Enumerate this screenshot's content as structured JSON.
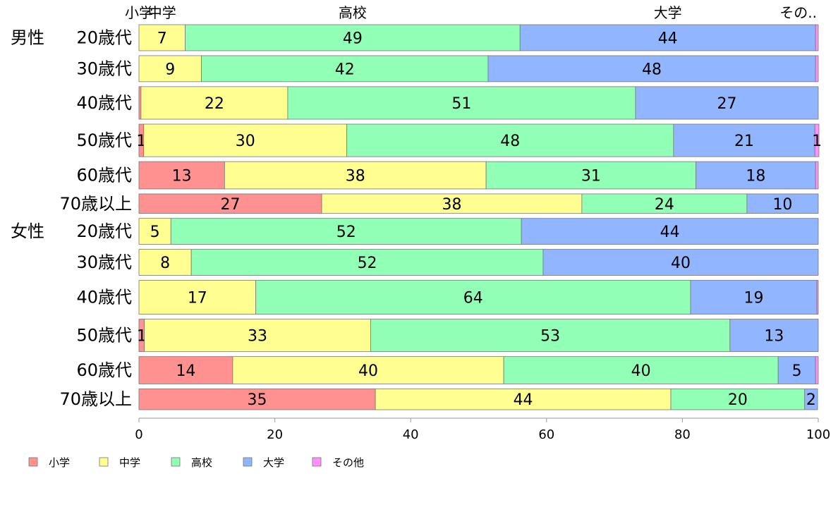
{
  "chart_data": {
    "type": "bar",
    "orientation": "horizontal",
    "stacked": true,
    "top_labels": [
      "小学",
      "中学",
      "高校",
      "大学",
      "その.."
    ],
    "groups": [
      "男性",
      "女性"
    ],
    "categories": [
      {
        "group": "男性",
        "label": "20歳代"
      },
      {
        "group": "",
        "label": "30歳代"
      },
      {
        "group": "",
        "label": "40歳代"
      },
      {
        "group": "",
        "label": "50歳代"
      },
      {
        "group": "",
        "label": "60歳代"
      },
      {
        "group": "",
        "label": "70歳以上"
      },
      {
        "group": "女性",
        "label": "20歳代"
      },
      {
        "group": "",
        "label": "30歳代"
      },
      {
        "group": "",
        "label": "40歳代"
      },
      {
        "group": "",
        "label": "50歳代"
      },
      {
        "group": "",
        "label": "60歳代"
      },
      {
        "group": "",
        "label": "70歳以上"
      }
    ],
    "series": [
      {
        "name": "小学",
        "color": "#ff9191",
        "values": [
          0,
          0,
          0.3,
          0.7,
          12.6,
          26.9,
          0,
          0,
          0,
          0.8,
          13.8,
          34.8
        ]
      },
      {
        "name": "中学",
        "color": "#ffff91",
        "values": [
          6.8,
          9.2,
          21.6,
          29.9,
          38.5,
          38.3,
          4.7,
          7.7,
          17.2,
          33.3,
          39.9,
          43.5
        ]
      },
      {
        "name": "高校",
        "color": "#91ffb6",
        "values": [
          49.3,
          42.2,
          51.2,
          48.1,
          30.9,
          24.3,
          51.6,
          51.8,
          64.0,
          52.9,
          40.4,
          19.7
        ]
      },
      {
        "name": "大学",
        "color": "#91b6ff",
        "values": [
          43.5,
          48.2,
          26.9,
          20.8,
          17.6,
          10.5,
          43.7,
          40.5,
          18.6,
          13.0,
          5.5,
          1.9
        ]
      },
      {
        "name": "その他",
        "color": "#ff91ff",
        "values": [
          0.4,
          0.4,
          0,
          0.6,
          0.4,
          0,
          0,
          0,
          0.2,
          0,
          0.4,
          0
        ]
      }
    ],
    "data_labels": [
      [
        "",
        "7",
        "49",
        "44",
        ""
      ],
      [
        "",
        "9",
        "42",
        "48",
        ""
      ],
      [
        "",
        "22",
        "51",
        "27",
        ""
      ],
      [
        "1",
        "30",
        "48",
        "21",
        "1"
      ],
      [
        "13",
        "38",
        "31",
        "18",
        ""
      ],
      [
        "27",
        "38",
        "24",
        "10",
        ""
      ],
      [
        "",
        "5",
        "52",
        "44",
        ""
      ],
      [
        "",
        "8",
        "52",
        "40",
        ""
      ],
      [
        "",
        "17",
        "64",
        "19",
        ""
      ],
      [
        "1",
        "33",
        "53",
        "13",
        ""
      ],
      [
        "14",
        "40",
        "40",
        "5",
        ""
      ],
      [
        "35",
        "44",
        "20",
        "2",
        ""
      ]
    ],
    "bar_weights": [
      1,
      1,
      1.25,
      1.25,
      1.05,
      0.75,
      1,
      1,
      1.3,
      1.25,
      1.05,
      0.8
    ],
    "xlim": [
      0,
      100
    ],
    "xticks": [
      0,
      20,
      40,
      60,
      80,
      100
    ],
    "legend": {
      "position": "bottom-left",
      "labels": [
        "小学",
        "中学",
        "高校",
        "大学",
        "その他"
      ]
    }
  }
}
